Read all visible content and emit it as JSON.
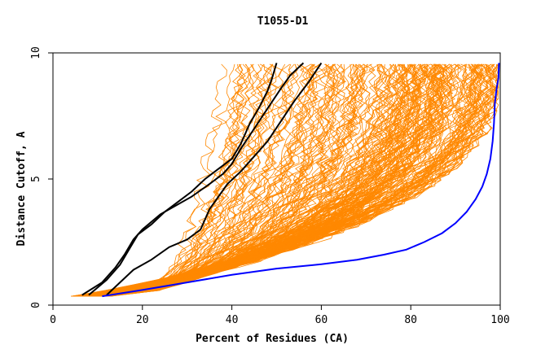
{
  "chart_data": {
    "type": "line",
    "title": "T1055-D1",
    "xlabel": "Percent of Residues (CA)",
    "ylabel": "Distance Cutoff, A",
    "xlim": [
      0,
      100
    ],
    "ylim": [
      0,
      10
    ],
    "x_ticks": [
      0,
      20,
      40,
      60,
      80,
      100
    ],
    "y_ticks": [
      0,
      5,
      10
    ],
    "grid": false,
    "legend": "none",
    "colors": {
      "background_models": "#ff8800",
      "highlighted_models": "#000000",
      "reference_model": "#0000ff",
      "axis": "#000000"
    },
    "series": [
      {
        "color": "#000000",
        "values": [
          [
            8.0,
            0.4
          ],
          [
            12.0,
            1.0
          ],
          [
            15.0,
            1.6
          ],
          [
            17.0,
            2.2
          ],
          [
            19.0,
            2.8
          ],
          [
            22.0,
            3.2
          ],
          [
            25.0,
            3.7
          ],
          [
            28.0,
            4.1
          ],
          [
            31.0,
            4.5
          ],
          [
            34.0,
            5.0
          ],
          [
            37.0,
            5.4
          ],
          [
            40.0,
            5.8
          ],
          [
            42.0,
            6.4
          ],
          [
            44.0,
            7.2
          ],
          [
            46.0,
            7.8
          ],
          [
            48.0,
            8.5
          ],
          [
            49.0,
            9.0
          ],
          [
            50.0,
            9.6
          ]
        ]
      },
      {
        "color": "#000000",
        "values": [
          [
            6.5,
            0.4
          ],
          [
            11.0,
            0.9
          ],
          [
            14.0,
            1.5
          ],
          [
            16.0,
            2.0
          ],
          [
            18.0,
            2.6
          ],
          [
            20.0,
            3.0
          ],
          [
            24.0,
            3.6
          ],
          [
            27.0,
            3.9
          ],
          [
            31.0,
            4.3
          ],
          [
            35.0,
            4.8
          ],
          [
            38.0,
            5.2
          ],
          [
            40.0,
            5.6
          ],
          [
            42.0,
            6.2
          ],
          [
            45.0,
            7.0
          ],
          [
            48.0,
            7.8
          ],
          [
            51.0,
            8.6
          ],
          [
            53.0,
            9.1
          ],
          [
            56.0,
            9.6
          ]
        ]
      },
      {
        "color": "#000000",
        "values": [
          [
            12.0,
            0.4
          ],
          [
            15.0,
            0.9
          ],
          [
            18.0,
            1.4
          ],
          [
            22.0,
            1.8
          ],
          [
            26.0,
            2.3
          ],
          [
            30.0,
            2.6
          ],
          [
            33.0,
            3.0
          ],
          [
            34.0,
            3.4
          ],
          [
            35.0,
            3.8
          ],
          [
            37.0,
            4.3
          ],
          [
            39.0,
            4.8
          ],
          [
            42.0,
            5.3
          ],
          [
            45.0,
            5.9
          ],
          [
            48.0,
            6.5
          ],
          [
            51.0,
            7.3
          ],
          [
            54.0,
            8.1
          ],
          [
            57.0,
            8.8
          ],
          [
            60.0,
            9.6
          ]
        ]
      },
      {
        "color": "#0000ff",
        "values": [
          [
            11.0,
            0.35
          ],
          [
            20.0,
            0.6
          ],
          [
            30.0,
            0.9
          ],
          [
            40.0,
            1.2
          ],
          [
            50.0,
            1.45
          ],
          [
            60.0,
            1.62
          ],
          [
            68.0,
            1.8
          ],
          [
            74.0,
            2.0
          ],
          [
            79.0,
            2.2
          ],
          [
            83.0,
            2.5
          ],
          [
            87.0,
            2.85
          ],
          [
            90.0,
            3.25
          ],
          [
            92.5,
            3.7
          ],
          [
            94.5,
            4.2
          ],
          [
            96.0,
            4.7
          ],
          [
            97.0,
            5.2
          ],
          [
            97.8,
            5.8
          ],
          [
            98.3,
            6.5
          ],
          [
            98.6,
            7.2
          ],
          [
            98.8,
            8.0
          ],
          [
            99.2,
            8.6
          ],
          [
            99.6,
            9.0
          ],
          [
            99.7,
            9.6
          ]
        ]
      }
    ]
  }
}
